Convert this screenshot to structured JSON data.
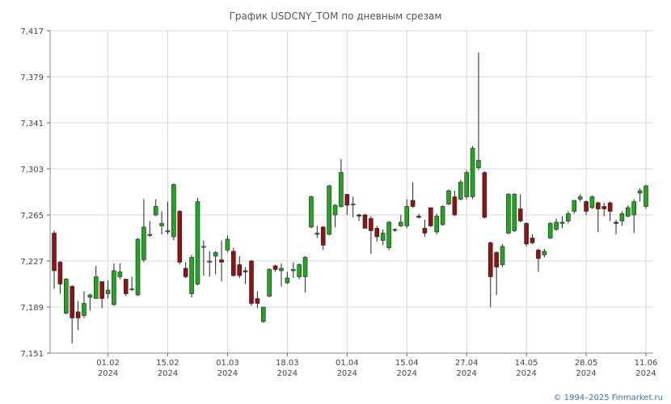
{
  "chart_data": {
    "type": "candlestick",
    "title": "График USDCNY_TOM по дневным срезам",
    "categories": [
      null,
      null,
      null,
      null,
      null,
      null,
      null,
      null,
      null,
      "01.02",
      null,
      null,
      null,
      null,
      null,
      null,
      null,
      null,
      null,
      "15.02",
      null,
      null,
      null,
      null,
      null,
      null,
      null,
      null,
      null,
      "01.03",
      null,
      null,
      null,
      null,
      null,
      null,
      null,
      null,
      null,
      "18.03",
      null,
      null,
      null,
      null,
      null,
      null,
      null,
      null,
      null,
      "01.04",
      null,
      null,
      null,
      null,
      null,
      null,
      null,
      null,
      null,
      "15.04",
      null,
      null,
      null,
      null,
      null,
      null,
      null,
      null,
      null,
      "27.04",
      null,
      null,
      null,
      null,
      null,
      null,
      null,
      null,
      null,
      "14.05",
      null,
      null,
      null,
      null,
      null,
      null,
      null,
      null,
      null,
      "28.05",
      null,
      null,
      null,
      null,
      null,
      null,
      null,
      null,
      null,
      "11.06"
    ],
    "category_years": [
      null,
      null,
      null,
      null,
      null,
      null,
      null,
      null,
      null,
      "2024",
      null,
      null,
      null,
      null,
      null,
      null,
      null,
      null,
      null,
      "2024",
      null,
      null,
      null,
      null,
      null,
      null,
      null,
      null,
      null,
      "2024",
      null,
      null,
      null,
      null,
      null,
      null,
      null,
      null,
      null,
      "2024",
      null,
      null,
      null,
      null,
      null,
      null,
      null,
      null,
      null,
      "2024",
      null,
      null,
      null,
      null,
      null,
      null,
      null,
      null,
      null,
      "2024",
      null,
      null,
      null,
      null,
      null,
      null,
      null,
      null,
      null,
      "2024",
      null,
      null,
      null,
      null,
      null,
      null,
      null,
      null,
      null,
      "2024",
      null,
      null,
      null,
      null,
      null,
      null,
      null,
      null,
      null,
      "2024",
      null,
      null,
      null,
      null,
      null,
      null,
      null,
      null,
      null,
      "2024"
    ],
    "open": [
      7.25,
      7.226,
      7.184,
      7.206,
      7.185,
      7.182,
      7.197,
      7.196,
      7.21,
      7.2,
      7.191,
      7.214,
      7.212,
      7.204,
      7.199,
      7.228,
      7.248,
      7.265,
      7.256,
      7.251,
      7.247,
      7.268,
      7.221,
      7.2,
      7.208,
      7.239,
      7.226,
      7.231,
      7.228,
      7.236,
      7.235,
      7.224,
      7.219,
      7.227,
      7.196,
      7.177,
      7.198,
      7.223,
      7.219,
      7.209,
      7.219,
      7.214,
      7.214,
      7.255,
      7.249,
      7.255,
      7.249,
      7.265,
      7.272,
      7.282,
      7.274,
      7.265,
      7.265,
      7.262,
      7.254,
      7.244,
      7.238,
      7.253,
      7.256,
      7.256,
      7.277,
      7.264,
      7.254,
      7.271,
      7.251,
      7.257,
      7.274,
      7.28,
      7.278,
      7.28,
      7.28,
      7.304,
      7.3,
      7.242,
      7.234,
      7.224,
      7.25,
      7.252,
      7.27,
      7.258,
      7.246,
      7.236,
      7.232,
      7.246,
      7.253,
      7.258,
      7.26,
      7.268,
      7.278,
      7.276,
      7.271,
      7.275,
      7.272,
      7.275,
      7.259,
      7.26,
      7.264,
      7.265,
      7.283,
      7.272
    ],
    "high": [
      7.252,
      7.227,
      7.213,
      7.207,
      7.194,
      7.202,
      7.2,
      7.223,
      7.21,
      7.211,
      7.225,
      7.225,
      7.212,
      7.214,
      7.246,
      7.278,
      7.26,
      7.278,
      7.268,
      7.276,
      7.291,
      7.269,
      7.226,
      7.232,
      7.279,
      7.244,
      7.235,
      7.235,
      7.244,
      7.248,
      7.238,
      7.231,
      7.222,
      7.228,
      7.202,
      7.189,
      7.221,
      7.224,
      7.225,
      7.218,
      7.226,
      7.225,
      7.231,
      7.281,
      7.256,
      7.256,
      7.29,
      7.274,
      7.311,
      7.282,
      7.28,
      7.266,
      7.266,
      7.264,
      7.256,
      7.253,
      7.26,
      7.254,
      7.265,
      7.278,
      7.292,
      7.266,
      7.261,
      7.271,
      7.266,
      7.273,
      7.286,
      7.285,
      7.294,
      7.302,
      7.322,
      7.399,
      7.301,
      7.243,
      7.235,
      7.241,
      7.283,
      7.283,
      7.282,
      7.259,
      7.249,
      7.237,
      7.237,
      7.259,
      7.262,
      7.264,
      7.268,
      7.277,
      7.282,
      7.277,
      7.281,
      7.276,
      7.275,
      7.276,
      7.261,
      7.268,
      7.273,
      7.278,
      7.287,
      7.29
    ],
    "low": [
      7.204,
      7.2,
      7.183,
      7.159,
      7.17,
      7.18,
      7.186,
      7.196,
      7.188,
      7.196,
      7.19,
      7.212,
      7.198,
      7.202,
      7.198,
      7.226,
      7.247,
      7.264,
      7.249,
      7.249,
      7.244,
      7.224,
      7.213,
      7.197,
      7.207,
      7.215,
      7.214,
      7.216,
      7.21,
      7.234,
      7.214,
      7.213,
      7.208,
      7.19,
      7.188,
      7.176,
      7.197,
      7.218,
      7.206,
      7.208,
      7.213,
      7.212,
      7.201,
      7.254,
      7.246,
      7.236,
      7.248,
      7.255,
      7.271,
      7.265,
      7.263,
      7.26,
      7.254,
      7.233,
      7.243,
      7.24,
      7.236,
      7.251,
      7.255,
      7.254,
      7.271,
      7.262,
      7.247,
      7.255,
      7.249,
      7.256,
      7.273,
      7.264,
      7.277,
      7.278,
      7.278,
      7.302,
      7.262,
      7.189,
      7.199,
      7.222,
      7.249,
      7.251,
      7.259,
      7.239,
      7.241,
      7.218,
      7.23,
      7.245,
      7.252,
      7.254,
      7.258,
      7.266,
      7.276,
      7.265,
      7.27,
      7.251,
      7.264,
      7.26,
      7.249,
      7.256,
      7.263,
      7.25,
      7.276,
      7.27
    ],
    "close": [
      7.219,
      7.208,
      7.212,
      7.18,
      7.18,
      7.192,
      7.199,
      7.214,
      7.196,
      7.203,
      7.219,
      7.218,
      7.2,
      7.204,
      7.245,
      7.255,
      7.249,
      7.272,
      7.258,
      7.252,
      7.29,
      7.226,
      7.214,
      7.23,
      7.276,
      7.239,
      7.227,
      7.234,
      7.226,
      7.245,
      7.215,
      7.215,
      7.218,
      7.192,
      7.192,
      7.189,
      7.22,
      7.22,
      7.221,
      7.213,
      7.22,
      7.224,
      7.23,
      7.28,
      7.25,
      7.24,
      7.289,
      7.273,
      7.3,
      7.273,
      7.274,
      7.264,
      7.254,
      7.252,
      7.247,
      7.25,
      7.259,
      7.253,
      7.259,
      7.272,
      7.272,
      7.263,
      7.25,
      7.256,
      7.264,
      7.272,
      7.285,
      7.265,
      7.292,
      7.3,
      7.32,
      7.31,
      7.263,
      7.214,
      7.222,
      7.239,
      7.282,
      7.282,
      7.26,
      7.241,
      7.242,
      7.229,
      7.235,
      7.258,
      7.259,
      7.259,
      7.266,
      7.277,
      7.28,
      7.268,
      7.28,
      7.27,
      7.27,
      7.268,
      7.258,
      7.266,
      7.271,
      7.276,
      7.285,
      7.289
    ],
    "ylim": [
      7.151,
      7.417
    ],
    "yticks": [
      {
        "value": 7.151,
        "label": "7,151"
      },
      {
        "value": 7.189,
        "label": "7,189"
      },
      {
        "value": 7.227,
        "label": "7,227"
      },
      {
        "value": 7.265,
        "label": "7,265"
      },
      {
        "value": 7.303,
        "label": "7,303"
      },
      {
        "value": 7.341,
        "label": "7,341"
      },
      {
        "value": 7.379,
        "label": "7,379"
      },
      {
        "value": 7.417,
        "label": "7,417"
      }
    ],
    "grid": true,
    "up_color": "#22a622",
    "down_color": "#8b1414"
  },
  "footer": "© 1994–2025 Finmarket.ru"
}
